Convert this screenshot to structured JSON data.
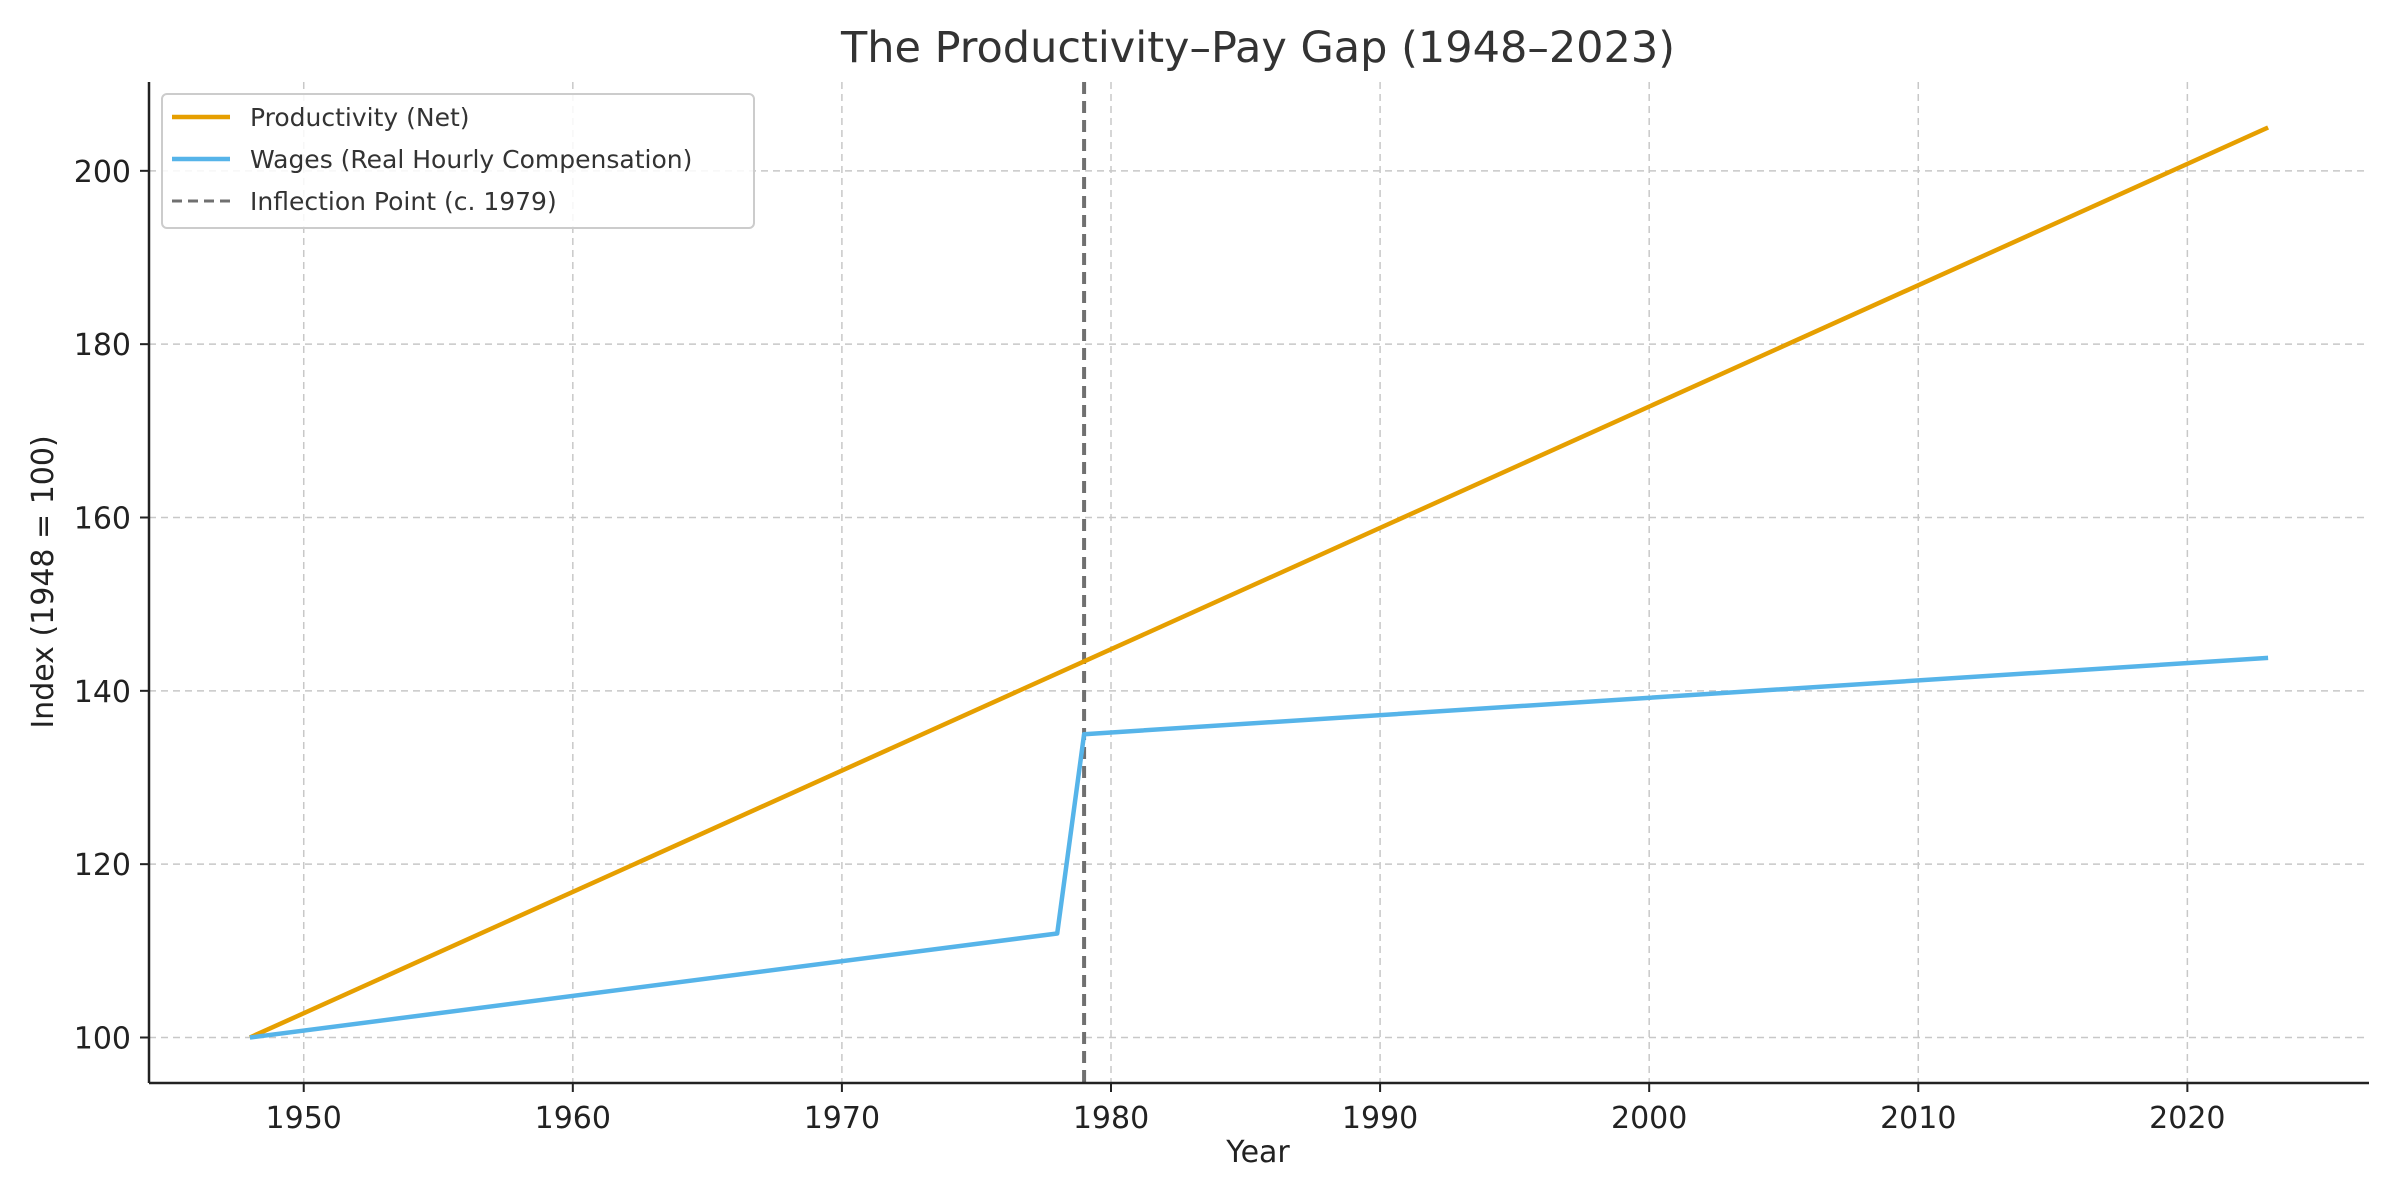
{
  "chart_data": {
    "type": "line",
    "title": "The Productivity–Pay Gap (1948–2023)",
    "xlabel": "Year",
    "ylabel": "Index (1948 = 100)",
    "xlim": [
      1944.25,
      2026.75
    ],
    "ylim": [
      94.75,
      210.25
    ],
    "xticks": [
      1950,
      1960,
      1970,
      1980,
      1990,
      2000,
      2010,
      2020
    ],
    "yticks": [
      100,
      120,
      140,
      160,
      180,
      200
    ],
    "grid": true,
    "legend_position": "top-left",
    "series": [
      {
        "name": "Productivity (Net)",
        "color": "#E69F00",
        "style": "solid",
        "x": [
          1948,
          2023
        ],
        "y": [
          100,
          205
        ]
      },
      {
        "name": "Wages (Real Hourly Compensation)",
        "color": "#56B4E9",
        "style": "solid",
        "x": [
          1948,
          1978,
          1979,
          2023
        ],
        "y": [
          100,
          112,
          135,
          143.8
        ]
      }
    ],
    "vlines": [
      {
        "name": "Inflection Point (c. 1979)",
        "x": 1979,
        "color": "#707070",
        "style": "dashed"
      }
    ]
  }
}
